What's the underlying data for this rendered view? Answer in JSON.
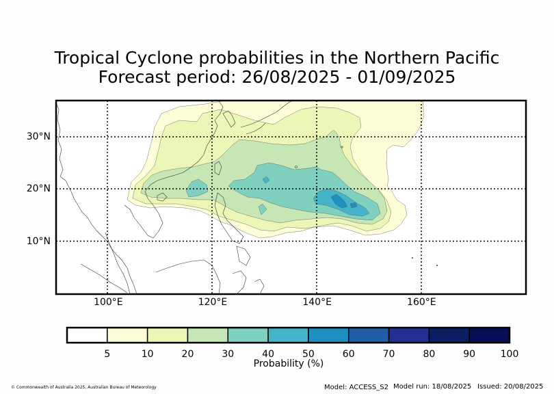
{
  "title": {
    "line1": "Tropical Cyclone probabilities in the Northern Pacific",
    "line2": "Forecast period: 26/08/2025 - 01/09/2025"
  },
  "map": {
    "lon_range": [
      90,
      180
    ],
    "lat_range": [
      0,
      37
    ],
    "lat_ticks": [
      {
        "value": 30,
        "label": "30°N"
      },
      {
        "value": 20,
        "label": "20°N"
      },
      {
        "value": 10,
        "label": "10°N"
      }
    ],
    "lon_ticks": [
      {
        "value": 100,
        "label": "100°E"
      },
      {
        "value": 120,
        "label": "120°E"
      },
      {
        "value": 140,
        "label": "140°E"
      },
      {
        "value": 160,
        "label": "160°E"
      }
    ],
    "gridlines": "dotted"
  },
  "colorbar": {
    "title": "Probability (%)",
    "levels": [
      "5",
      "10",
      "20",
      "30",
      "40",
      "50",
      "60",
      "70",
      "80",
      "90",
      "100"
    ],
    "colors": [
      "#ffffff",
      "#fdfdd8",
      "#ecf6b6",
      "#c7e6b6",
      "#80d0c0",
      "#45b3c8",
      "#1f8fc0",
      "#215ea5",
      "#252e93",
      "#0b1e60",
      "#080d58"
    ]
  },
  "footer": {
    "copyright": "© Commonwealth of Australia 2025, Australian Bureau of Meteorology",
    "model": "Model: ACCESS_S2",
    "model_run": "Model run: 18/08/2025",
    "issued": "Issued: 20/08/2025"
  }
}
